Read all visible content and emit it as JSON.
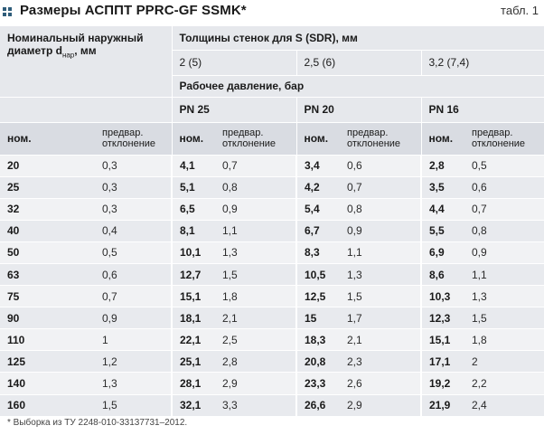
{
  "title": "Размеры АСППТ PPRC-GF SSMK*",
  "table_no": "табл. 1",
  "header": {
    "diameter_label": "Номинальный наружный диаметр d",
    "diameter_sub": "нар",
    "diameter_unit": ", мм",
    "wall_label": "Толщины стенок для S (SDR), мм",
    "sdr": [
      "2 (5)",
      "2,5 (6)",
      "3,2 (7,4)"
    ],
    "pressure_label": "Рабочее давление, бар",
    "pn": [
      "PN 25",
      "PN 20",
      "PN 16"
    ],
    "nom": "ном.",
    "dev": "предвар. отклонение"
  },
  "rows": [
    {
      "d": "20",
      "dd": "0,3",
      "a": "4,1",
      "ad": "0,7",
      "b": "3,4",
      "bd": "0,6",
      "c": "2,8",
      "cd": "0,5"
    },
    {
      "d": "25",
      "dd": "0,3",
      "a": "5,1",
      "ad": "0,8",
      "b": "4,2",
      "bd": "0,7",
      "c": "3,5",
      "cd": "0,6"
    },
    {
      "d": "32",
      "dd": "0,3",
      "a": "6,5",
      "ad": "0,9",
      "b": "5,4",
      "bd": "0,8",
      "c": "4,4",
      "cd": "0,7"
    },
    {
      "d": "40",
      "dd": "0,4",
      "a": "8,1",
      "ad": "1,1",
      "b": "6,7",
      "bd": "0,9",
      "c": "5,5",
      "cd": "0,8"
    },
    {
      "d": "50",
      "dd": "0,5",
      "a": "10,1",
      "ad": "1,3",
      "b": "8,3",
      "bd": "1,1",
      "c": "6,9",
      "cd": "0,9"
    },
    {
      "d": "63",
      "dd": "0,6",
      "a": "12,7",
      "ad": "1,5",
      "b": "10,5",
      "bd": "1,3",
      "c": "8,6",
      "cd": "1,1"
    },
    {
      "d": "75",
      "dd": "0,7",
      "a": "15,1",
      "ad": "1,8",
      "b": "12,5",
      "bd": "1,5",
      "c": "10,3",
      "cd": "1,3"
    },
    {
      "d": "90",
      "dd": "0,9",
      "a": "18,1",
      "ad": "2,1",
      "b": "15",
      "bd": "1,7",
      "c": "12,3",
      "cd": "1,5"
    },
    {
      "d": "110",
      "dd": "1",
      "a": "22,1",
      "ad": "2,5",
      "b": "18,3",
      "bd": "2,1",
      "c": "15,1",
      "cd": "1,8"
    },
    {
      "d": "125",
      "dd": "1,2",
      "a": "25,1",
      "ad": "2,8",
      "b": "20,8",
      "bd": "2,3",
      "c": "17,1",
      "cd": "2"
    },
    {
      "d": "140",
      "dd": "1,3",
      "a": "28,1",
      "ad": "2,9",
      "b": "23,3",
      "bd": "2,6",
      "c": "19,2",
      "cd": "2,2"
    },
    {
      "d": "160",
      "dd": "1,5",
      "a": "32,1",
      "ad": "3,3",
      "b": "26,6",
      "bd": "2,9",
      "c": "21,9",
      "cd": "2,4"
    }
  ],
  "footnote": "* Выборка из ТУ 2248-010-33137731–2012.",
  "colors": {
    "header_bg": "#e6e8ec",
    "row_odd": "#f1f2f4",
    "row_even": "#e8eaee",
    "accent": "#2f5d7a"
  }
}
